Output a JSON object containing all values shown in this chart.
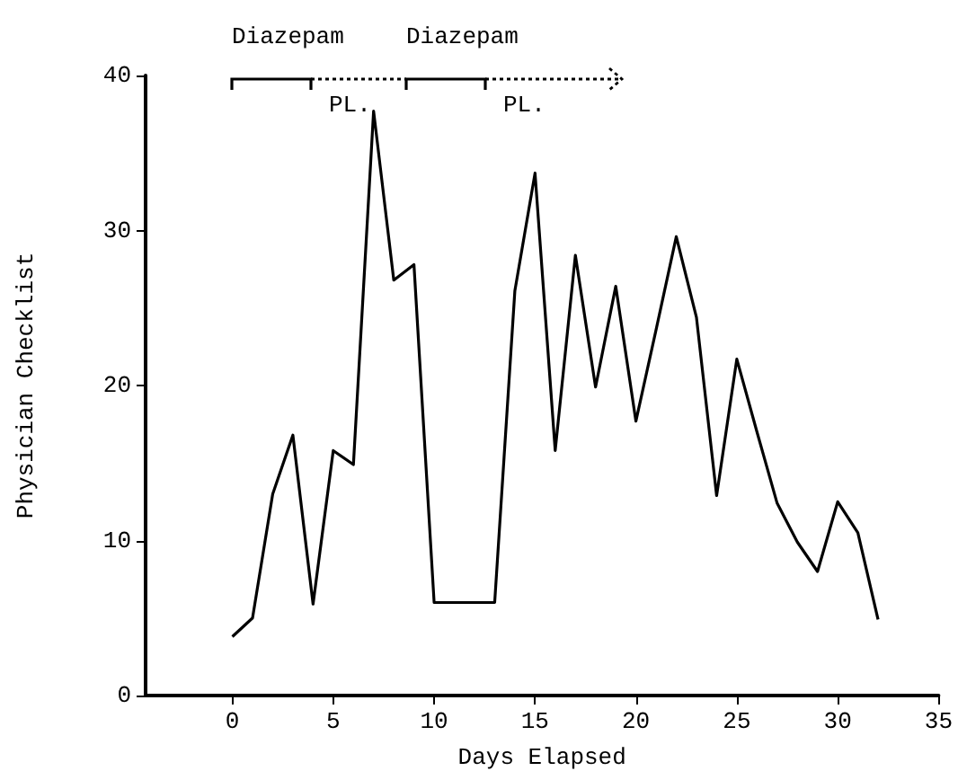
{
  "chart_data": {
    "type": "line",
    "xlabel": "Days Elapsed",
    "ylabel": "Physician Checklist",
    "x": [
      0,
      1,
      2,
      3,
      4,
      5,
      6,
      7,
      8,
      9,
      10,
      11,
      12,
      13,
      14,
      15,
      16,
      17,
      18,
      19,
      20,
      21,
      22,
      23,
      24,
      25,
      26,
      27,
      28,
      29,
      30,
      31,
      32
    ],
    "series": [
      {
        "color": "#000000",
        "values": [
          3.8,
          5.0,
          13.0,
          16.8,
          5.9,
          15.8,
          14.9,
          37.7,
          26.8,
          27.8,
          6,
          6,
          6,
          6,
          26.1,
          33.7,
          15.8,
          28.4,
          19.9,
          26.4,
          17.7,
          23.6,
          29.6,
          24.4,
          12.9,
          21.7,
          17,
          12.4,
          9.9,
          8,
          12.5,
          10.5,
          4.9
        ]
      }
    ],
    "xlim": [
      -4.3,
      35
    ],
    "xticks": [
      0,
      5,
      10,
      15,
      20,
      25,
      30,
      35
    ],
    "ylim": [
      0,
      40
    ],
    "yticks": [
      0,
      10,
      20,
      30,
      40
    ],
    "annotations": [
      "Diazepam",
      "PL.",
      "Diazepam",
      "PL."
    ],
    "grid": false,
    "marker": "none",
    "line_style": "solid"
  }
}
